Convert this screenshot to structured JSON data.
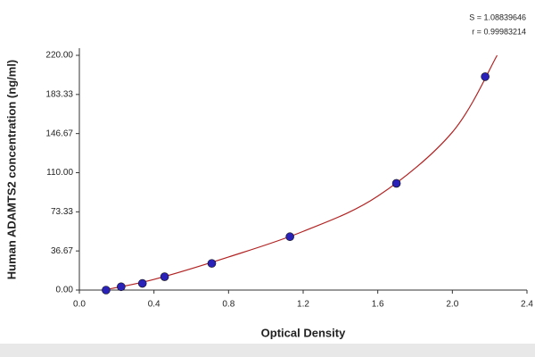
{
  "chart_data": {
    "type": "scatter",
    "x_label": "Optical Density",
    "y_label": "Human ADAMTS2  concentration (ng/ml)",
    "annotations": [
      "S = 1.08839646",
      "r = 0.99983214"
    ],
    "xlim": [
      0,
      2.4
    ],
    "xticks": [
      {
        "value": 0,
        "label": "0.0"
      },
      0.4,
      0.8,
      1.2,
      1.6,
      {
        "value": 2,
        "label": "2.0"
      },
      2.4
    ],
    "ylim": [
      0,
      220
    ],
    "yticks": [
      {
        "value": 0,
        "label": "0.00"
      },
      {
        "value": 36.67,
        "label": "36.67"
      },
      {
        "value": 73.33,
        "label": "73.33"
      },
      {
        "value": 110,
        "label": "110.00"
      },
      {
        "value": 146.67,
        "label": "146.67"
      },
      {
        "value": 183.33,
        "label": "183.33"
      },
      {
        "value": 220,
        "label": "220.00"
      }
    ],
    "series": [
      {
        "color": "#2a22b8",
        "x": [
          0.143,
          0.224,
          0.338,
          0.457,
          0.71,
          1.129,
          1.7,
          2.176
        ],
        "values": [
          0,
          3.12,
          6.25,
          12.5,
          25,
          50,
          100,
          200
        ]
      }
    ],
    "fit": {
      "color": "#b22222",
      "x": [
        0.13,
        0.4,
        0.8,
        1.2,
        1.6,
        2.0,
        2.24
      ],
      "values": [
        0,
        10,
        31,
        55,
        88,
        148,
        220
      ]
    }
  }
}
